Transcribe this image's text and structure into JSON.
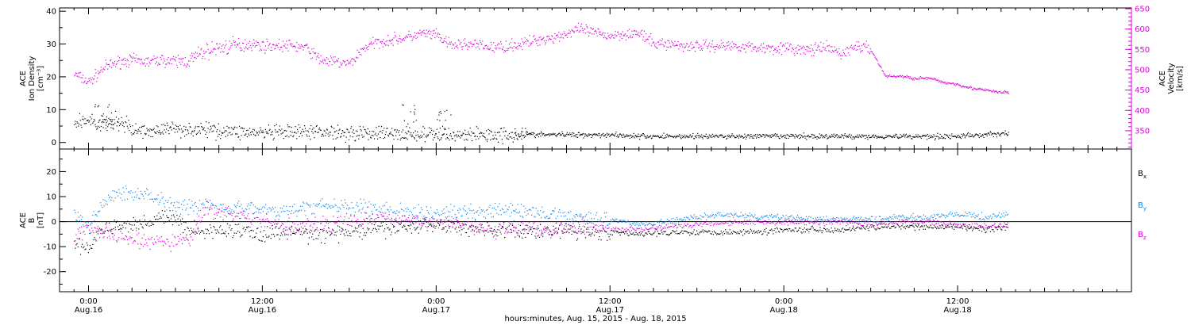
{
  "chart_data": [
    {
      "type": "scatter",
      "panel": "top",
      "ylabel_left": [
        "ACE",
        "Ion Density",
        "[cm⁻³]"
      ],
      "ylabel_right": [
        "ACE",
        "Velocity",
        "[km/s]"
      ],
      "ylim_left": [
        -2,
        41
      ],
      "ylim_right": [
        305,
        652
      ],
      "yticks_left": [
        "0",
        "10",
        "20",
        "30",
        "40"
      ],
      "yticks_right": [
        "350",
        "400",
        "450",
        "500",
        "550",
        "600",
        "650"
      ],
      "colors": {
        "density": "#000000",
        "velocity": "#dd00dd"
      },
      "series": [
        {
          "name": "Ion Density",
          "axis": "left",
          "x_hours": [
            -1,
            0,
            1,
            2,
            3,
            4,
            5,
            6,
            7,
            8,
            10,
            12,
            14,
            16,
            18,
            20,
            22,
            24,
            26,
            28,
            30,
            32,
            34,
            36,
            38,
            40,
            42,
            44,
            46,
            48,
            50,
            52,
            54,
            56,
            58,
            60,
            62,
            63.5
          ],
          "values": [
            6,
            7,
            5,
            7,
            4,
            3.5,
            4,
            4.5,
            4,
            4,
            3.5,
            3,
            3,
            3.5,
            3,
            3,
            2.5,
            2.5,
            2.5,
            2.5,
            2.5,
            2.5,
            2.5,
            2.5,
            2,
            2,
            2,
            2,
            2,
            2,
            2,
            2,
            2,
            2,
            2,
            2,
            2.5,
            3
          ],
          "spikes": [
            [
              1,
              12
            ],
            [
              1.5,
              9
            ],
            [
              22,
              12
            ],
            [
              24.5,
              10
            ],
            [
              30,
              4.5
            ]
          ]
        },
        {
          "name": "Velocity",
          "axis": "right",
          "x_hours": [
            -1,
            0,
            1,
            2,
            3,
            4,
            5,
            6,
            7,
            8,
            9,
            10,
            11,
            12,
            13,
            14,
            15,
            16,
            17,
            18,
            19,
            20,
            21,
            22,
            23,
            24,
            25,
            26,
            27,
            28,
            29,
            30,
            31,
            32,
            33,
            34,
            35,
            36,
            37,
            38,
            39,
            40,
            41,
            42,
            43,
            44,
            45,
            46,
            47,
            48,
            49,
            50,
            51,
            52,
            53,
            54,
            55,
            56,
            57,
            58,
            59,
            60,
            61,
            62,
            63,
            63.5
          ],
          "values": [
            490,
            470,
            505,
            520,
            525,
            520,
            525,
            520,
            525,
            545,
            555,
            560,
            565,
            560,
            560,
            560,
            555,
            525,
            520,
            515,
            555,
            570,
            575,
            580,
            590,
            585,
            560,
            565,
            560,
            555,
            560,
            565,
            575,
            580,
            590,
            600,
            590,
            585,
            590,
            590,
            565,
            565,
            560,
            560,
            560,
            560,
            560,
            555,
            555,
            555,
            550,
            550,
            555,
            540,
            560,
            550,
            485,
            485,
            480,
            480,
            470,
            465,
            455,
            450,
            445,
            445
          ]
        }
      ]
    },
    {
      "type": "scatter",
      "panel": "bottom",
      "ylabel_left": [
        "ACE",
        "B",
        "[nT]"
      ],
      "ylim": [
        -28,
        29
      ],
      "yticks": [
        "-20",
        "-10",
        "0",
        "10",
        "20"
      ],
      "zero_line": true,
      "legend_position": "right",
      "colors": {
        "Bx": "#000000",
        "By": "#1188ee",
        "Bz": "#dd00dd"
      },
      "series": [
        {
          "name": "Bx",
          "x_hours": [
            -1,
            0,
            1,
            2,
            3,
            4,
            5,
            6,
            7,
            8,
            10,
            12,
            14,
            16,
            18,
            20,
            22,
            24,
            26,
            28,
            30,
            32,
            34,
            36,
            38,
            40,
            42,
            44,
            46,
            48,
            50,
            52,
            54,
            56,
            58,
            60,
            62,
            63.5
          ],
          "values": [
            -10,
            -10,
            -3,
            -2,
            -1,
            0,
            2,
            1,
            -3,
            -4,
            -3,
            -5,
            -4,
            -5,
            -4,
            -3,
            -2,
            -1,
            -2,
            -3,
            -4,
            -3,
            -4,
            -4,
            -5,
            -4,
            -4,
            -4,
            -4,
            -3,
            -3,
            -3,
            -2,
            -2,
            -2,
            -2,
            -3,
            -2
          ]
        },
        {
          "name": "By",
          "x_hours": [
            -1,
            0,
            1,
            2,
            3,
            4,
            5,
            6,
            7,
            8,
            10,
            12,
            14,
            16,
            18,
            20,
            22,
            24,
            26,
            28,
            30,
            32,
            34,
            36,
            38,
            40,
            42,
            44,
            46,
            48,
            50,
            52,
            54,
            56,
            58,
            60,
            62,
            63.5
          ],
          "values": [
            3,
            -2,
            8,
            11,
            12,
            11,
            9,
            7,
            6,
            7,
            6,
            5,
            4,
            7,
            6,
            5,
            4,
            3,
            4,
            5,
            4,
            3,
            2,
            1,
            -1,
            0,
            2,
            3,
            2,
            2,
            1,
            1,
            1,
            2,
            2,
            3,
            2,
            3
          ]
        },
        {
          "name": "Bz",
          "x_hours": [
            -1,
            0,
            1,
            2,
            3,
            4,
            5,
            6,
            7,
            8,
            10,
            12,
            14,
            16,
            18,
            20,
            22,
            24,
            26,
            28,
            30,
            32,
            34,
            36,
            38,
            40,
            42,
            44,
            46,
            48,
            50,
            52,
            54,
            56,
            58,
            60,
            62,
            63.5
          ],
          "values": [
            -5,
            -3,
            -4,
            -6,
            -7,
            -8,
            -8,
            -8,
            -7,
            5,
            3,
            0,
            -2,
            -1,
            0,
            2,
            0,
            0,
            -1,
            -3,
            -2,
            -3,
            -2,
            -3,
            -3,
            -2,
            -1,
            0,
            0,
            0,
            0,
            0,
            -1,
            0,
            0,
            -1,
            -2,
            -1
          ]
        }
      ],
      "legend": [
        "Bx",
        "By",
        "Bz"
      ]
    }
  ],
  "x_axis": {
    "xlim_hours": [
      -2,
      72
    ],
    "ticks": [
      {
        "hour": 0,
        "time": "0:00",
        "date": "Aug.16"
      },
      {
        "hour": 12,
        "time": "12:00",
        "date": "Aug.16"
      },
      {
        "hour": 24,
        "time": "0:00",
        "date": "Aug.17"
      },
      {
        "hour": 36,
        "time": "12:00",
        "date": "Aug.17"
      },
      {
        "hour": 48,
        "time": "0:00",
        "date": "Aug.18"
      },
      {
        "hour": 60,
        "time": "12:00",
        "date": "Aug.18"
      }
    ],
    "label": "hours:minutes, Aug. 15, 2015 - Aug. 18, 2015"
  }
}
